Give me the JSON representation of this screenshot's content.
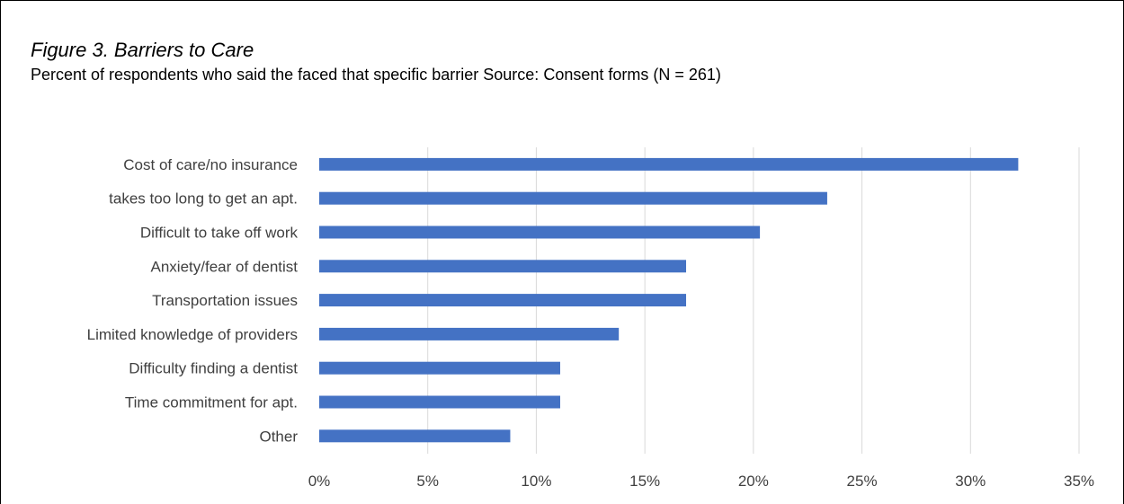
{
  "caption": {
    "title": "Figure 3. Barriers to Care",
    "subtitle": "Percent of respondents who said the faced that specific barrier Source: Consent forms (N = 261)"
  },
  "colors": {
    "bar": "#4472C4",
    "grid": "#d9d9d9",
    "text": "#404040"
  },
  "chart_data": {
    "type": "bar",
    "orientation": "horizontal",
    "categories": [
      "Cost of care/no insurance",
      "takes too long to get an apt.",
      "Difficult to take off work",
      "Anxiety/fear of dentist",
      "Transportation issues",
      "Limited knowledge of providers",
      "Difficulty finding a dentist",
      "Time commitment for apt.",
      "Other"
    ],
    "values": [
      32.2,
      23.4,
      20.3,
      16.9,
      16.9,
      13.8,
      11.1,
      11.1,
      8.8
    ],
    "unit": "%",
    "xlim": [
      0,
      35
    ],
    "xticks": [
      0,
      5,
      10,
      15,
      20,
      25,
      30,
      35
    ],
    "xtick_labels": [
      "0%",
      "5%",
      "10%",
      "15%",
      "20%",
      "25%",
      "30%",
      "35%"
    ],
    "grid": true,
    "legend": "none"
  }
}
